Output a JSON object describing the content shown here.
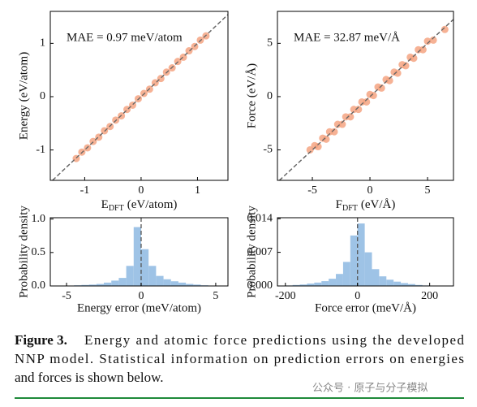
{
  "chart_data": [
    {
      "type": "scatter",
      "annotation": "MAE = 0.97 meV/atom",
      "ylabel": "Energy (eV/atom)",
      "xlabel": {
        "main": "E",
        "sub": "DFT",
        "unit": "(eV/atom)"
      },
      "x": [
        -1.15,
        -1.05,
        -0.95,
        -0.85,
        -0.75,
        -0.65,
        -0.55,
        -0.45,
        -0.35,
        -0.25,
        -0.15,
        -0.05,
        0.05,
        0.15,
        0.25,
        0.35,
        0.45,
        0.55,
        0.65,
        0.75,
        0.85,
        0.95,
        1.05,
        1.15
      ],
      "values": [
        -1.16,
        -1.04,
        -0.96,
        -0.84,
        -0.76,
        -0.64,
        -0.56,
        -0.44,
        -0.36,
        -0.24,
        -0.16,
        -0.04,
        0.06,
        0.14,
        0.26,
        0.34,
        0.46,
        0.54,
        0.66,
        0.74,
        0.86,
        0.94,
        1.06,
        1.14
      ],
      "color": "#f4a582",
      "identity_line": true,
      "xlim": [
        -1.61,
        1.54
      ],
      "ylim": [
        -1.57,
        1.6
      ],
      "xticks": [
        -1,
        0,
        1
      ],
      "yticks": [
        -1,
        0,
        1
      ]
    },
    {
      "type": "scatter",
      "annotation": "MAE = 32.87 meV/Å",
      "ylabel": "Force (eV/Å)",
      "xlabel": {
        "main": "F",
        "sub": "DFT",
        "unit": "(eV/Å)"
      },
      "x": [
        -5.2,
        -4.8,
        -4.5,
        -4.1,
        -3.8,
        -3.5,
        -3.1,
        -2.8,
        -2.4,
        -2.1,
        -1.7,
        -1.4,
        -1.0,
        -0.7,
        -0.3,
        0.0,
        0.3,
        0.7,
        1.0,
        1.4,
        1.7,
        2.1,
        2.4,
        2.8,
        3.1,
        3.5,
        3.8,
        4.2,
        4.6,
        5.0,
        5.5,
        6.5
      ],
      "values": [
        -5.0,
        -4.6,
        -4.7,
        -3.9,
        -4.0,
        -3.3,
        -3.3,
        -2.6,
        -2.6,
        -1.9,
        -1.9,
        -1.2,
        -1.2,
        -0.5,
        -0.5,
        0.2,
        0.1,
        0.9,
        0.8,
        1.6,
        1.5,
        2.3,
        2.2,
        3.0,
        2.9,
        3.7,
        3.6,
        4.4,
        4.4,
        5.2,
        5.3,
        6.3
      ],
      "color": "#f4a582",
      "identity_line": true,
      "xlim": [
        -8.03,
        7.25
      ],
      "ylim": [
        -7.86,
        8.0
      ],
      "xticks": [
        -5,
        0,
        5
      ],
      "yticks": [
        -5,
        0,
        5
      ]
    },
    {
      "type": "histogram",
      "ylabel": "Probability density",
      "xlabel": "Energy error (meV/atom)",
      "bins": [
        -5,
        -4.5,
        -4,
        -3.5,
        -3,
        -2.5,
        -2,
        -1.5,
        -1,
        -0.5,
        0,
        0.5,
        1,
        1.5,
        2,
        2.5,
        3,
        3.5,
        4,
        4.5,
        5
      ],
      "values": [
        0.005,
        0.01,
        0.015,
        0.02,
        0.03,
        0.05,
        0.08,
        0.12,
        0.3,
        0.88,
        0.55,
        0.3,
        0.15,
        0.1,
        0.07,
        0.05,
        0.03,
        0.02,
        0.01,
        0.005
      ],
      "color": "#9ec3e6",
      "mean_line": 0,
      "xlim": [
        -6.09,
        5.82
      ],
      "ylim": [
        0,
        1.02
      ],
      "xticks": [
        -5,
        0,
        5
      ],
      "yticks": [
        {
          "value": 0,
          "label": "0.0"
        },
        0.5,
        {
          "value": 1,
          "label": "1.0"
        }
      ]
    },
    {
      "type": "histogram",
      "ylabel": "Probability density",
      "xlabel": "Force error (meV/Å)",
      "bins": [
        -200,
        -180,
        -160,
        -140,
        -120,
        -100,
        -80,
        -60,
        -40,
        -20,
        0,
        20,
        40,
        60,
        80,
        100,
        120,
        140,
        160,
        180,
        200
      ],
      "values": [
        0.0001,
        0.0002,
        0.0003,
        0.0005,
        0.0007,
        0.001,
        0.0015,
        0.0025,
        0.005,
        0.0105,
        0.013,
        0.007,
        0.0035,
        0.002,
        0.0013,
        0.0009,
        0.0006,
        0.0004,
        0.0002,
        0.0001
      ],
      "color": "#9ec3e6",
      "mean_line": 0,
      "xlim": [
        -222,
        266
      ],
      "ylim": [
        0,
        0.0142
      ],
      "xticks": [
        -200,
        0,
        200
      ],
      "yticks": [
        {
          "value": 0,
          "label": "0.000"
        },
        0.007,
        0.014
      ]
    }
  ],
  "caption": {
    "label": "Figure 3.",
    "lines": [
      "Energy and atomic force predictions using the developed",
      "NNP model. Statistical information on prediction errors on energies",
      "and forces is shown below."
    ]
  },
  "watermark": "公众号 · 原子与分子模拟"
}
